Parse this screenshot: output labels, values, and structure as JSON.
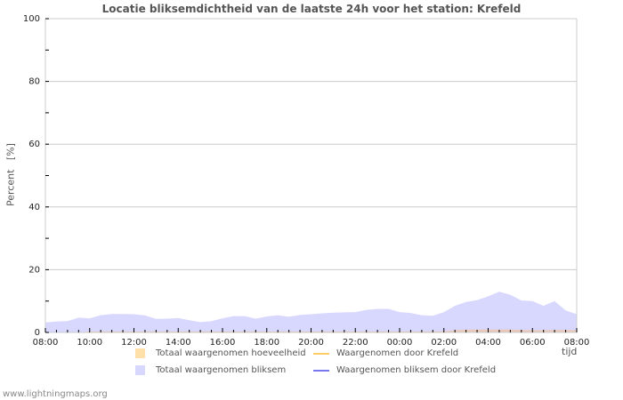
{
  "title": "Locatie bliksemdichtheid van de laatste 24h voor het station: Krefeld",
  "y_axis_label": "Percent   [%]",
  "x_axis_unit": "tijd",
  "footer": "www.lightningmaps.org",
  "legend": [
    {
      "label": "Totaal waargenomen hoeveelheid",
      "kind": "area",
      "color": "#ffe0a8"
    },
    {
      "label": "Totaal waargenomen bliksem",
      "kind": "area",
      "color": "#d8d8ff"
    },
    {
      "label": "Waargenomen door Krefeld",
      "kind": "line",
      "color": "#ffcc66"
    },
    {
      "label": "Waargenomen bliksem door Krefeld",
      "kind": "line",
      "color": "#7777ee"
    }
  ],
  "chart_data": {
    "type": "area",
    "title": "Locatie bliksemdichtheid van de laatste 24h voor het station: Krefeld",
    "xlabel": "tijd",
    "ylabel": "Percent [%]",
    "ylim": [
      0,
      100
    ],
    "yticks": [
      0,
      20,
      40,
      60,
      80,
      100
    ],
    "xticks": [
      "08:00",
      "10:00",
      "12:00",
      "14:00",
      "16:00",
      "18:00",
      "20:00",
      "22:00",
      "00:00",
      "02:00",
      "04:00",
      "06:00",
      "08:00"
    ],
    "grid": true,
    "legend_position": "bottom",
    "x": [
      "08:00",
      "08:30",
      "09:00",
      "09:30",
      "10:00",
      "10:30",
      "11:00",
      "11:30",
      "12:00",
      "12:30",
      "13:00",
      "13:30",
      "14:00",
      "14:30",
      "15:00",
      "15:30",
      "16:00",
      "16:30",
      "17:00",
      "17:30",
      "18:00",
      "18:30",
      "19:00",
      "19:30",
      "20:00",
      "20:30",
      "21:00",
      "21:30",
      "22:00",
      "22:30",
      "23:00",
      "23:30",
      "00:00",
      "00:30",
      "01:00",
      "01:30",
      "02:00",
      "02:30",
      "03:00",
      "03:30",
      "04:00",
      "04:30",
      "05:00",
      "05:30",
      "06:00",
      "06:30",
      "07:00",
      "07:30",
      "08:00"
    ],
    "series": [
      {
        "name": "Totaal waargenomen bliksem",
        "color": "#d8d8ff",
        "values": [
          3.2,
          3.5,
          3.6,
          4.7,
          4.5,
          5.5,
          5.9,
          5.9,
          5.8,
          5.4,
          4.3,
          4.4,
          4.6,
          3.9,
          3.3,
          3.6,
          4.5,
          5.2,
          5.2,
          4.4,
          5.1,
          5.5,
          5.0,
          5.6,
          5.8,
          6.1,
          6.3,
          6.4,
          6.5,
          7.2,
          7.5,
          7.5,
          6.5,
          6.2,
          5.5,
          5.3,
          6.5,
          8.5,
          9.7,
          10.3,
          11.5,
          13.0,
          12.0,
          10.2,
          10.0,
          8.5,
          10.0,
          7.0,
          5.8
        ]
      },
      {
        "name": "Totaal waargenomen hoeveelheid",
        "color": "#ffe0a8",
        "values": [
          0,
          0,
          0,
          0,
          0.3,
          0.3,
          0.3,
          0.3,
          0.3,
          0.3,
          0.3,
          0.3,
          0.3,
          0.3,
          0.3,
          0.3,
          0.3,
          0.3,
          0.3,
          0.3,
          0.3,
          0.3,
          0.3,
          0.3,
          0.3,
          0.3,
          0.3,
          0.3,
          0.3,
          0.3,
          0.3,
          0.3,
          0.3,
          0.3,
          0.3,
          0.3,
          0.4,
          0.7,
          0.9,
          0.9,
          0.9,
          0.9,
          0.9,
          0.8,
          0.7,
          0.7,
          0.8,
          0.8,
          0.7
        ]
      },
      {
        "name": "Waargenomen door Krefeld",
        "color": "#ffcc66",
        "values": []
      },
      {
        "name": "Waargenomen bliksem door Krefeld",
        "color": "#7777ee",
        "values": []
      }
    ]
  }
}
